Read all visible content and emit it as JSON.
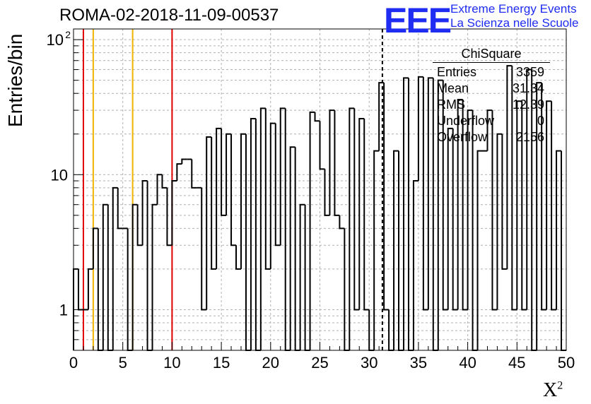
{
  "header": {
    "title": "ROMA-02-2018-11-09-00537",
    "logo_text": "EEE",
    "logo_line1": "Extreme Energy Events",
    "logo_line2": "La Scienza nelle Scuole"
  },
  "stats": {
    "title": "ChiSquare",
    "rows": [
      {
        "label": "Entries",
        "value": "3359"
      },
      {
        "label": "Mean",
        "value": "31.34"
      },
      {
        "label": "RMS",
        "value": "12.39"
      },
      {
        "label": "Underflow",
        "value": "0"
      },
      {
        "label": "Overflow",
        "value": "2156"
      }
    ]
  },
  "chart_data": {
    "type": "histogram",
    "title": "ROMA-02-2018-11-09-00537",
    "xlabel": "X",
    "xlabel_sup": "2",
    "ylabel": "Entries/bin",
    "xlim": [
      0,
      50
    ],
    "ylim": [
      0.5,
      120
    ],
    "y_scale": "log",
    "grid": true,
    "bin_width": 0.5,
    "x_ticks": [
      "0",
      "5",
      "10",
      "15",
      "20",
      "25",
      "30",
      "35",
      "40",
      "45",
      "50"
    ],
    "y_ticks": [
      {
        "value": 1,
        "label": "1"
      },
      {
        "value": 10,
        "label": "10"
      },
      {
        "value": 100,
        "label": "10",
        "sup": "2"
      }
    ],
    "values": [
      2,
      1,
      1,
      2,
      4,
      0,
      6,
      0,
      8,
      4,
      4,
      0,
      6,
      3,
      9,
      0,
      6,
      10,
      8,
      3,
      9,
      12,
      13,
      13,
      8,
      8,
      1,
      19,
      2,
      22,
      5,
      20,
      3,
      2,
      20,
      0,
      26,
      0,
      31,
      2,
      24,
      3,
      31,
      0,
      16,
      0,
      6,
      0,
      29,
      25,
      11,
      5,
      30,
      5,
      4,
      0,
      31,
      1,
      26,
      1,
      0,
      15,
      48,
      1,
      0,
      15,
      0,
      52,
      0,
      9,
      53,
      1,
      52,
      0,
      50,
      1,
      22,
      1,
      36,
      1,
      30,
      0,
      15,
      15,
      30,
      1,
      20,
      2,
      64,
      1,
      35,
      1,
      60,
      0,
      48,
      1,
      35,
      1,
      15,
      0
    ],
    "reference_lines": [
      {
        "x": 1,
        "color": "#e00000",
        "style": "solid"
      },
      {
        "x": 2,
        "color": "#f0b400",
        "style": "solid"
      },
      {
        "x": 6,
        "color": "#f0b400",
        "style": "solid"
      },
      {
        "x": 10,
        "color": "#e00000",
        "style": "solid"
      },
      {
        "x": 31.34,
        "color": "#000000",
        "style": "dashed"
      }
    ],
    "colors": {
      "line": "#000000",
      "grid": "#b0b0b0"
    }
  }
}
